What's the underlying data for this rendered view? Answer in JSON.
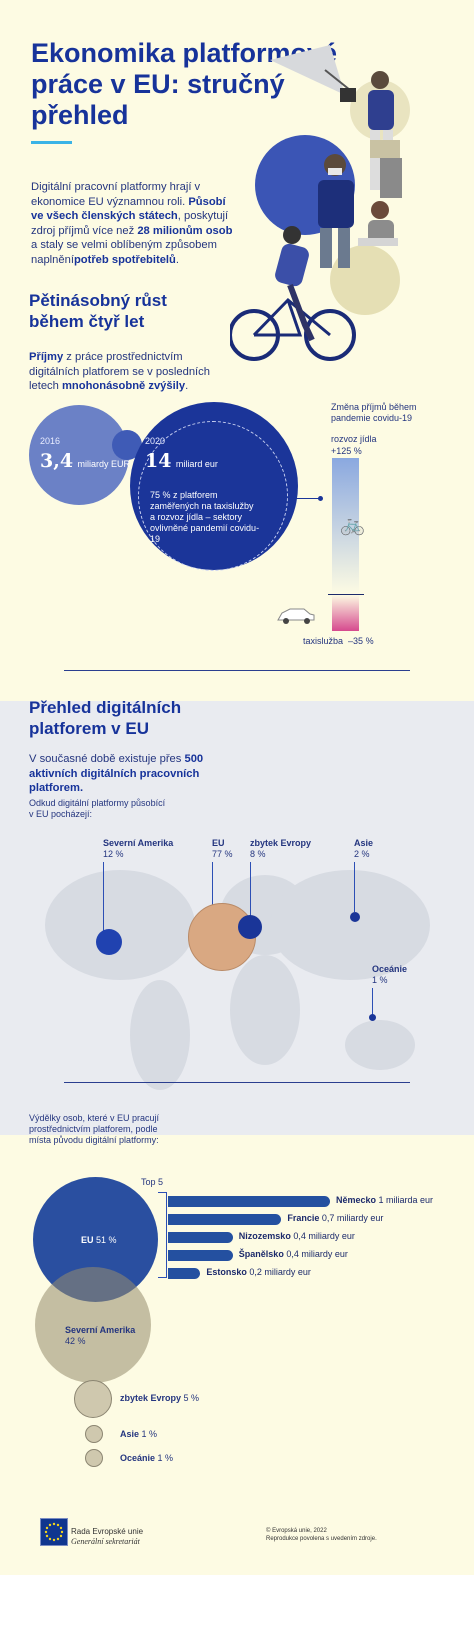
{
  "header": {
    "title": "Ekonomika platformové práce v EU: stručný přehled",
    "intro_1": "Digitální pracovní platformy hrají v ekonomice EU významnou roli. ",
    "intro_2": "Působí ve všech členských státech",
    "intro_3": ", poskytují zdroj příjmů více než ",
    "intro_4": "28 milionům osob",
    "intro_5": " a staly se velmi oblíbeným způsobem naplnění",
    "intro_6": "potřeb spotřebitelů",
    "intro_7": "."
  },
  "growth": {
    "heading": "Pětinásobný růst během čtyř let",
    "text_1": "Příjmy",
    "text_2": " z práce prostřednictvím digitálních platforem se v posledních letech ",
    "text_3": "mnohonásobně zvýšily",
    "text_4": ".",
    "y2016": "2016",
    "v2016": "3,4",
    "u2016": "miliardy EUR",
    "y2020": "2020",
    "v2020": "14",
    "u2020": "miliard eur",
    "note": "75 % z platforem zaměřených na taxislužby a rozvoz jídla – sektory ovlivněné pandemií covidu-19",
    "covid_title": "Změna příjmů během pandemie covidu-19",
    "food_label": "rozvoz jídla",
    "food_value": "+125 %",
    "taxi_label": "taxislužba",
    "taxi_value": "–35 %"
  },
  "overview": {
    "heading": "Přehled digitálních platforem v EU",
    "text_1": "V současné době existuje přes ",
    "text_2": "500 aktivních digitálních pracovních platforem.",
    "map_title": "Odkud digitální platformy působící v EU pocházejí:",
    "regions": [
      {
        "name": "Severní Amerika",
        "value": "12 %"
      },
      {
        "name": "EU",
        "value": "77 %"
      },
      {
        "name": "zbytek Evropy",
        "value": "8 %"
      },
      {
        "name": "Asie",
        "value": "2 %"
      },
      {
        "name": "Oceánie",
        "value": "1 %"
      }
    ]
  },
  "earnings": {
    "title": "Výdělky osob, které v EU pracují prostřednictvím platforem, podle místa původu digitální platformy:",
    "top5": "Top 5",
    "eu": {
      "name": "EU",
      "value": "51 %"
    },
    "na": {
      "name": "Severní Amerika",
      "value": "42 %"
    },
    "eur": {
      "name": "zbytek Evropy",
      "value": "5 %"
    },
    "asia": {
      "name": "Asie",
      "value": "1 %"
    },
    "oce": {
      "name": "Oceánie",
      "value": "1 %"
    },
    "countries": [
      {
        "name": "Německo",
        "value": "1 miliarda eur",
        "amount": 1.0
      },
      {
        "name": "Francie",
        "value": "0,7 miliardy eur",
        "amount": 0.7
      },
      {
        "name": "Nizozemsko",
        "value": "0,4 miliardy eur",
        "amount": 0.4
      },
      {
        "name": "Španělsko",
        "value": "0,4 miliardy eur",
        "amount": 0.4
      },
      {
        "name": "Estonsko",
        "value": "0,2 miliardy eur",
        "amount": 0.2
      }
    ]
  },
  "footer": {
    "org_1": "Rada Evropské unie",
    "org_2": "Generální sekretariát",
    "copy_1": "© Evropská unie, 2022",
    "copy_2": "Reprodukce povolena s uvedením zdroje."
  },
  "colors": {
    "navy": "#17339a",
    "accent": "#3ab3e6",
    "bar": "#2450a0",
    "cream": "#fdfbe3"
  }
}
